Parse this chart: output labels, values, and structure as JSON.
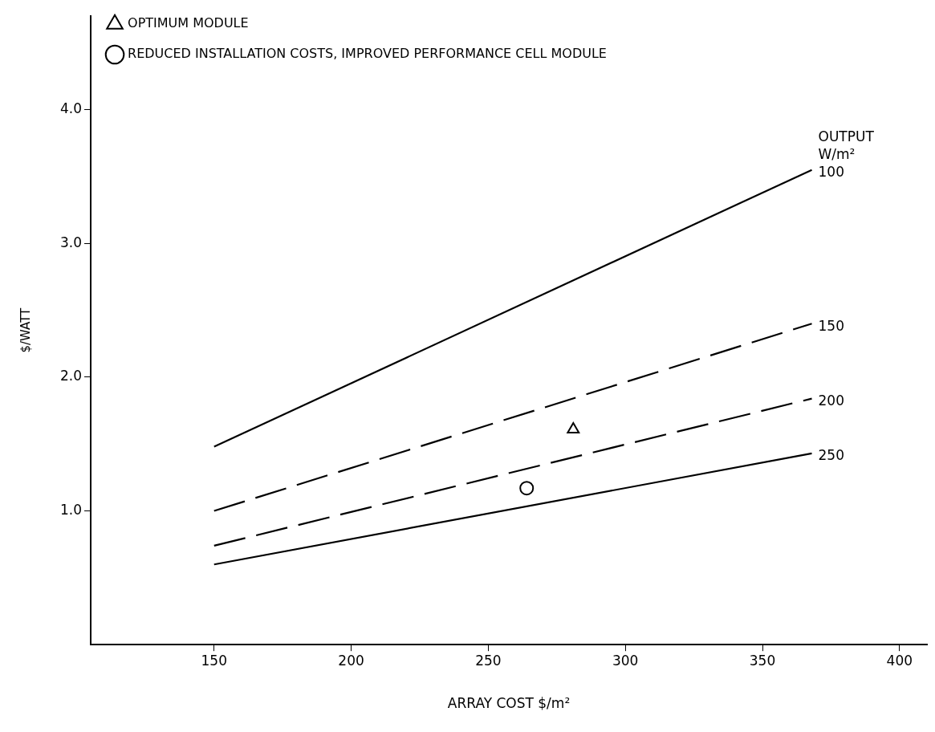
{
  "chart_data": {
    "type": "line",
    "xlabel": "ARRAY COST $/m²",
    "ylabel": "$/WATT",
    "legend_title": "OUTPUT W/m²",
    "legend": "top left",
    "xlim": [
      105,
      410
    ],
    "ylim": [
      0,
      4.7
    ],
    "xticks": [
      150,
      200,
      250,
      300,
      350,
      400
    ],
    "yticks": [
      {
        "value": 1,
        "label": "1.0"
      },
      {
        "value": 2,
        "label": "2.0"
      },
      {
        "value": 3,
        "label": "3.0"
      },
      {
        "value": 4,
        "label": "4.0"
      }
    ],
    "series": [
      {
        "name": "100",
        "color": "#000000",
        "x": [
          150,
          368
        ],
        "values": [
          1.48,
          3.55
        ],
        "line_style": "solid"
      },
      {
        "name": "150",
        "color": "#000000",
        "x": [
          150,
          368
        ],
        "values": [
          1.0,
          2.4
        ],
        "line_style": "dashed"
      },
      {
        "name": "200",
        "color": "#000000",
        "x": [
          150,
          368
        ],
        "values": [
          0.74,
          1.84
        ],
        "line_style": "dashed"
      },
      {
        "name": "250",
        "color": "#000000",
        "x": [
          150,
          368
        ],
        "values": [
          0.6,
          1.43
        ],
        "line_style": "solid"
      },
      {
        "name": "OPTIMUM MODULE",
        "type": "scatter",
        "color": "#000000",
        "x": [
          281
        ],
        "values": [
          1.61
        ],
        "marker": "triangle"
      },
      {
        "name": "REDUCED INSTALLATION COSTS, IMPROVED PERFORMANCE CELL MODULE",
        "type": "scatter",
        "color": "#000000",
        "x": [
          264
        ],
        "values": [
          1.17
        ],
        "marker": "circle"
      }
    ]
  }
}
